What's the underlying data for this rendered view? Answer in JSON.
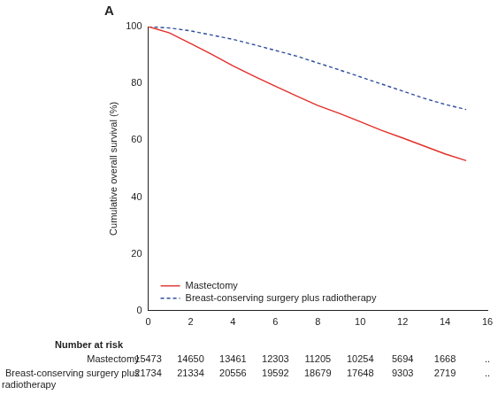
{
  "chart_data": {
    "type": "line",
    "title": "A",
    "y_label": "Cumulative overall survival (%)",
    "x": [
      0,
      1,
      2,
      3,
      4,
      5,
      6,
      7,
      8,
      9,
      10,
      11,
      12,
      13,
      14,
      15
    ],
    "series": [
      {
        "name": "Mastectomy",
        "color": "#e3302a",
        "line_style": "solid",
        "values": [
          100,
          97.8,
          94,
          90.2,
          86.2,
          82.5,
          79,
          75.6,
          72.2,
          69.5,
          66.5,
          63.5,
          60.8,
          58,
          55.2,
          52.8
        ]
      },
      {
        "name": "Breast-conserving surgery plus radiotherapy",
        "color": "#2f4f9e",
        "line_style": "dashed",
        "values": [
          100,
          99.5,
          98.5,
          97,
          95.5,
          93.6,
          91.6,
          89.6,
          87.2,
          84.8,
          82.3,
          79.8,
          77.3,
          74.8,
          72.6,
          70.8
        ]
      }
    ],
    "xlim": [
      0,
      16
    ],
    "xticks": [
      0,
      2,
      4,
      6,
      8,
      10,
      12,
      14,
      16
    ],
    "ylim": [
      0,
      100
    ],
    "yticks": [
      0,
      20,
      40,
      60,
      80,
      100
    ],
    "grid": false,
    "legend": "lower left",
    "number_at_risk": {
      "title": "Number at risk",
      "x": [
        0,
        2,
        4,
        6,
        8,
        10,
        12,
        14,
        16
      ],
      "rows": [
        {
          "name": "Mastectomy",
          "values": [
            15473,
            14650,
            13461,
            12303,
            11205,
            10254,
            5694,
            1668,
            ".."
          ]
        },
        {
          "name": "Breast-conserving surgery plus radiotherapy",
          "values": [
            21734,
            21334,
            20556,
            19592,
            18679,
            17648,
            9303,
            2719,
            ".."
          ]
        }
      ]
    }
  }
}
